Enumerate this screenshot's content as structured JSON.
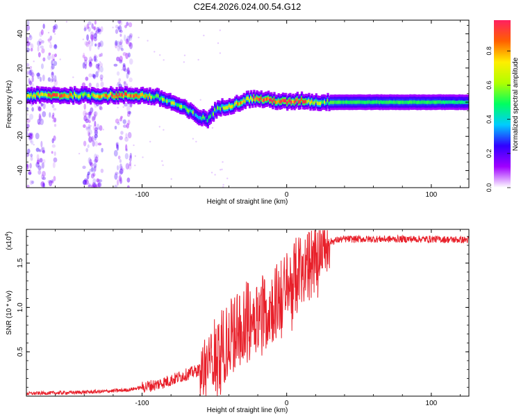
{
  "title": "C2E4.2026.024.00.54.G12",
  "chart_data": [
    {
      "type": "heatmap",
      "xlabel": "Height of straight line (km)",
      "ylabel": "Frequency (Hz)",
      "xlim": [
        -180,
        126
      ],
      "ylim": [
        -50,
        48
      ],
      "xticks": [
        -100,
        0,
        100
      ],
      "yticks": [
        -40,
        -20,
        0,
        20,
        40
      ],
      "colorbar": {
        "label": "Normalized spectral amplitude",
        "range": [
          0,
          0.98
        ],
        "ticks": [
          0.0,
          0.2,
          0.4,
          0.6,
          0.8
        ],
        "tick_labels": [
          "0.0",
          "0.2",
          "0.4",
          "0.6",
          "0.8"
        ],
        "colors": [
          "#ffffff",
          "#a000ff",
          "#3000ff",
          "#00ccff",
          "#00ff60",
          "#b0ff00",
          "#ffee00",
          "#ff6000",
          "#ff2060"
        ]
      },
      "ridge": {
        "x": [
          -180,
          -160,
          -140,
          -120,
          -100,
          -90,
          -80,
          -70,
          -60,
          -55,
          -50,
          -45,
          -40,
          -35,
          -30,
          -25,
          -20,
          -10,
          0,
          10,
          20,
          40,
          60,
          80,
          100,
          126
        ],
        "y": [
          4,
          4,
          4,
          4,
          4,
          3,
          0,
          -4,
          -9,
          -10,
          -5,
          -3,
          -2,
          -1,
          1,
          2,
          2,
          1,
          0,
          1,
          0,
          0,
          0,
          0,
          0,
          0
        ],
        "amp": [
          0.55,
          0.88,
          0.65,
          0.85,
          0.75,
          0.6,
          0.55,
          0.5,
          0.45,
          0.4,
          0.45,
          0.5,
          0.6,
          0.7,
          0.75,
          0.8,
          0.92,
          0.9,
          0.95,
          0.85,
          0.6,
          0.5,
          0.5,
          0.5,
          0.5,
          0.45
        ]
      },
      "scatter_bands_x": [
        -178,
        -170,
        -162,
        -138,
        -134,
        -130,
        -116,
        -110
      ]
    },
    {
      "type": "line",
      "xlabel": "Height of straight line (km)",
      "ylabel": "SNR (10 * v/v)",
      "yexponent_label": "(x10",
      "yexponent_power": "4",
      "yexponent_close": ")",
      "xlim": [
        -180,
        126
      ],
      "ylim": [
        0,
        1.88
      ],
      "xticks": [
        -100,
        0,
        100
      ],
      "yticks": [
        0.5,
        1.0,
        1.5
      ],
      "ytick_labels": [
        "0.5",
        "1.0",
        "1.5"
      ],
      "color": "#e8202a",
      "trend": {
        "x": [
          -180,
          -150,
          -130,
          -110,
          -100,
          -90,
          -80,
          -70,
          -60,
          -50,
          -40,
          -35,
          -30,
          -25,
          -20,
          -15,
          -10,
          -5,
          0,
          5,
          10,
          15,
          20,
          25,
          30,
          35,
          40,
          60,
          80,
          100,
          126
        ],
        "y": [
          0.03,
          0.04,
          0.05,
          0.07,
          0.1,
          0.13,
          0.18,
          0.24,
          0.3,
          0.45,
          0.62,
          0.75,
          0.85,
          0.9,
          0.93,
          0.98,
          1.02,
          1.1,
          1.2,
          1.32,
          1.44,
          1.55,
          1.64,
          1.7,
          1.74,
          1.76,
          1.77,
          1.77,
          1.77,
          1.77,
          1.76
        ]
      }
    }
  ]
}
